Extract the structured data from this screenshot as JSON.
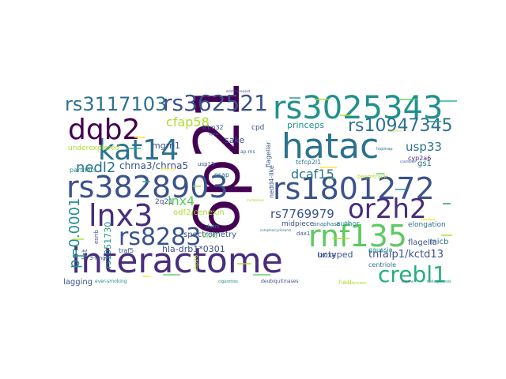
{
  "cloud": {
    "colors": {
      "dark_purple": "#440154",
      "indigo": "#472d7b",
      "slate_blue": "#3b528b",
      "steel_blue": "#2c728e",
      "teal": "#21918c",
      "sea_green": "#28ae80",
      "green": "#5ec962",
      "lime": "#addc30",
      "yellow": "#fde725"
    },
    "words": [
      {
        "id": "6p21",
        "text": "6p21",
        "color": "dark_purple"
      },
      {
        "id": "interactome",
        "text": "interactome",
        "color": "indigo"
      },
      {
        "id": "rs3025343",
        "text": "rs3025343",
        "color": "teal"
      },
      {
        "id": "hatac",
        "text": "hatac",
        "color": "steel_blue"
      },
      {
        "id": "rs1801272",
        "text": "rs1801272",
        "color": "slate_blue"
      },
      {
        "id": "rs3828903",
        "text": "rs3828903",
        "color": "slate_blue"
      },
      {
        "id": "rnf135",
        "text": "rnf135",
        "color": "green"
      },
      {
        "id": "kat14",
        "text": "kat14",
        "color": "steel_blue"
      },
      {
        "id": "or2h2",
        "text": "or2h2",
        "color": "indigo"
      },
      {
        "id": "dqb2",
        "text": "dqb2",
        "color": "dark_purple"
      },
      {
        "id": "lnx3",
        "text": "lnx3",
        "color": "indigo"
      },
      {
        "id": "rs8283",
        "text": "rs8283",
        "color": "slate_blue"
      },
      {
        "id": "crebl1",
        "text": "crebl1",
        "color": "sea_green"
      },
      {
        "id": "rs3117103",
        "text": "rs3117103",
        "color": "steel_blue"
      },
      {
        "id": "rs362521",
        "text": "rs362521",
        "color": "slate_blue"
      },
      {
        "id": "rs10947345",
        "text": "rs10947345",
        "color": "steel_blue"
      },
      {
        "id": "p0001",
        "text": "p=0.0001",
        "color": "teal"
      },
      {
        "id": "cfap58",
        "text": "cfap58",
        "color": "lime"
      },
      {
        "id": "nedl2",
        "text": "nedl2",
        "color": "steel_blue"
      },
      {
        "id": "lnx4",
        "text": "lnx4",
        "color": "green"
      },
      {
        "id": "usp33",
        "text": "usp33",
        "color": "steel_blue"
      },
      {
        "id": "dcaf15",
        "text": "dcaf15",
        "color": "steel_blue"
      },
      {
        "id": "rs7769979",
        "text": "rs7769979",
        "color": "slate_blue"
      },
      {
        "id": "tnfaip1",
        "text": "tnfaip1/kctd13",
        "color": "slate_blue"
      },
      {
        "id": "chrna3",
        "text": "chrna3/chrna5",
        "color": "slate_blue"
      },
      {
        "id": "mgrn1",
        "text": "mgrn1",
        "color": "slate_blue"
      },
      {
        "id": "princeps",
        "text": "princeps",
        "color": "teal"
      },
      {
        "id": "sake",
        "text": "sake",
        "color": "slate_blue"
      },
      {
        "id": "cpd",
        "text": "cpd",
        "color": "slate_blue"
      },
      {
        "id": "trim32",
        "text": "trim32",
        "color": "slate_blue"
      },
      {
        "id": "underexplored",
        "text": "underexplored",
        "color": "lime"
      },
      {
        "id": "partners",
        "text": "partners",
        "color": "teal"
      },
      {
        "id": "odf2",
        "text": "odf2/cenexin",
        "color": "lime"
      },
      {
        "id": "2q21",
        "text": "2q21",
        "color": "slate_blue"
      },
      {
        "id": "hladrb1",
        "text": "hla-drb1*0301",
        "color": "slate_blue"
      },
      {
        "id": "untyped",
        "text": "untyped",
        "color": "slate_blue"
      },
      {
        "id": "author",
        "text": "author",
        "color": "teal"
      },
      {
        "id": "elongation",
        "text": "elongation",
        "color": "steel_blue"
      },
      {
        "id": "midpiece",
        "text": "midpiece",
        "color": "slate_blue"
      },
      {
        "id": "anaphase",
        "text": "anaphase",
        "color": "steel_blue"
      },
      {
        "id": "micb",
        "text": "micb",
        "color": "steel_blue"
      },
      {
        "id": "flagella",
        "text": "flagella",
        "color": "slate_blue"
      },
      {
        "id": "centriole",
        "text": "centriole",
        "color": "steel_blue"
      },
      {
        "id": "gausia",
        "text": "gaussia",
        "color": "teal"
      },
      {
        "id": "rs1051730",
        "text": "rs1051730",
        "color": "teal"
      },
      {
        "id": "lagging",
        "text": "lagging",
        "color": "slate_blue"
      },
      {
        "id": "spectrometry",
        "text": "spectrometry",
        "color": "slate_blue"
      },
      {
        "id": "lxcxe",
        "text": "lxcxe",
        "color": "slate_blue"
      },
      {
        "id": "traf5",
        "text": "traf5",
        "color": "slate_blue"
      },
      {
        "id": "list",
        "text": "list",
        "color": "slate_blue"
      },
      {
        "id": "bioid",
        "text": "bioid",
        "color": "green"
      },
      {
        "id": "gs1",
        "text": "gs1",
        "color": "steel_blue"
      },
      {
        "id": "cyp2a6",
        "text": "cyp2a6",
        "color": "indigo"
      },
      {
        "id": "tcfcp2l1",
        "text": "tcfcp2l1",
        "color": "steel_blue"
      },
      {
        "id": "nedd4",
        "text": "nedd4-like",
        "color": "slate_blue"
      },
      {
        "id": "flagellar",
        "text": "flagellar",
        "color": "slate_blue"
      },
      {
        "id": "esap",
        "text": "esap",
        "color": "steel_blue"
      },
      {
        "id": "dubs",
        "text": "dubs",
        "color": "steel_blue"
      },
      {
        "id": "usp15",
        "text": "usp15",
        "color": "slate_blue"
      },
      {
        "id": "usp26",
        "text": "usp26",
        "color": "lime"
      },
      {
        "id": "dax1",
        "text": "dax1",
        "color": "slate_blue"
      },
      {
        "id": "esrrb",
        "text": "esrrb",
        "color": "slate_blue"
      },
      {
        "id": "3ring",
        "text": "3-ring",
        "color": "slate_blue"
      },
      {
        "id": "smoking",
        "text": "ever-smoking",
        "color": "teal"
      },
      {
        "id": "deubiq",
        "text": "deubiquitinases",
        "color": "slate_blue"
      },
      {
        "id": "cigarettes",
        "text": "cigarettes",
        "color": "teal"
      },
      {
        "id": "interview",
        "text": "interview",
        "color": "lime"
      },
      {
        "id": "ap",
        "text": "ap-ms",
        "color": "steel_blue"
      },
      {
        "id": "hopmap",
        "text": "hopmap",
        "color": "steel_blue"
      },
      {
        "id": "beamtrack",
        "text": "beamtrack",
        "color": "lime"
      },
      {
        "id": "sullagenesis",
        "text": "sullagenesis",
        "color": "teal"
      },
      {
        "id": "candidate",
        "text": "candidate",
        "color": "slate_blue"
      },
      {
        "id": "hacl",
        "text": "hacl",
        "color": "lime"
      },
      {
        "id": "intronic",
        "text": "intronic",
        "color": "yellow"
      },
      {
        "id": "eaizisen",
        "text": "ezizmogreased",
        "color": "slate_blue"
      },
      {
        "id": "ligand",
        "text": "ligand",
        "color": "steel_blue"
      },
      {
        "id": "lifetime",
        "text": "lifetime",
        "color": "slate_blue"
      },
      {
        "id": "oocytes",
        "text": "oocytes",
        "color": "lime"
      },
      {
        "id": "metaphase",
        "text": "metaphase",
        "color": "lime"
      },
      {
        "id": "complex",
        "text": "complex/cyclosome",
        "color": "steel_blue"
      }
    ]
  }
}
